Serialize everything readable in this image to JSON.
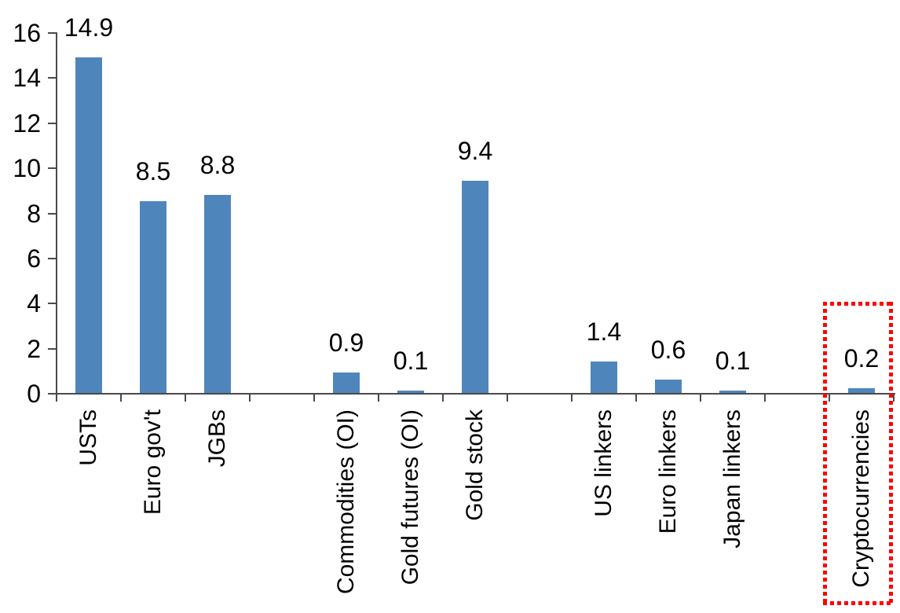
{
  "chart_data": {
    "type": "bar",
    "title": "",
    "categories": [
      "USTs",
      "Euro gov't",
      "JGBs",
      "",
      "Commodities (OI)",
      "Gold futures (OI)",
      "Gold stock",
      "",
      "US linkers",
      "Euro linkers",
      "Japan linkers",
      "",
      "Cryptocurrencies"
    ],
    "values": [
      14.9,
      8.5,
      8.8,
      null,
      0.9,
      0.1,
      9.4,
      null,
      1.4,
      0.6,
      0.1,
      null,
      0.2
    ],
    "data_labels": [
      "14.9",
      "8.5",
      "8.8",
      "",
      "0.9",
      "0.1",
      "9.4",
      "",
      "1.4",
      "0.6",
      "0.1",
      "",
      "0.2"
    ],
    "y_axis": {
      "min": 0,
      "max": 16,
      "tick_values": [
        0,
        2,
        4,
        6,
        8,
        10,
        12,
        14,
        16
      ],
      "tick_labels": [
        "0",
        "2",
        "4",
        "6",
        "8",
        "10",
        "12",
        "14",
        "16"
      ]
    },
    "x_label_rotation": -90,
    "gridlines": "none",
    "legend": "none",
    "colors": {
      "bar": "#4E86BC",
      "axis": "#4A4A4A",
      "text": "#000000",
      "background": "#FFFFFF",
      "highlight": "#FF0000"
    },
    "highlight": {
      "category": "Cryptocurrencies",
      "value_label": "0.2",
      "shape": "red-dotted-rectangle"
    }
  }
}
